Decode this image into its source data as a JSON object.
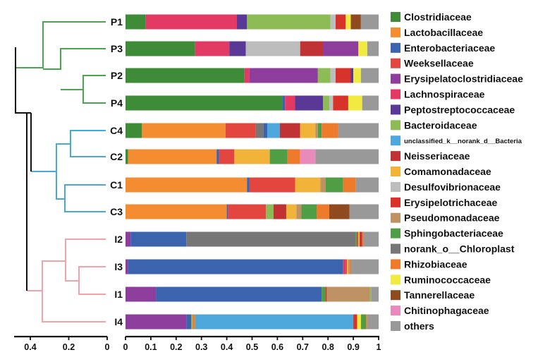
{
  "chart_data": {
    "type": "stacked-horizontal-bar-with-dendrogram",
    "samples": [
      "P1",
      "P3",
      "P2",
      "P4",
      "C4",
      "C2",
      "C1",
      "C3",
      "I2",
      "I3",
      "I1",
      "I4"
    ],
    "bar_axis": {
      "range": [
        0,
        1
      ],
      "ticks": [
        "0",
        "0.1",
        "0.2",
        "0.3",
        "0.4",
        "0.5",
        "0.6",
        "0.7",
        "0.8",
        "0.9",
        "1"
      ]
    },
    "tree_axis": {
      "range": [
        0.5,
        0
      ],
      "ticks": [
        "0.4",
        "0.2",
        "0"
      ]
    },
    "categories": [
      {
        "name": "Clostridiaceae",
        "color": "#3e8b38"
      },
      {
        "name": "Lactobacillaceae",
        "color": "#f48c32"
      },
      {
        "name": "Enterobacteriaceae",
        "color": "#3c63ad"
      },
      {
        "name": "Weeksellaceae",
        "color": "#e2463f"
      },
      {
        "name": "Erysipelatoclostridiaceae",
        "color": "#8d3d9b"
      },
      {
        "name": "Lachnospiraceae",
        "color": "#e23a64"
      },
      {
        "name": "Peptostreptococcaceae",
        "color": "#5a3895"
      },
      {
        "name": "Bacteroidaceae",
        "color": "#8dbb55"
      },
      {
        "name": "unclassified_k__norank_d__Bacteria",
        "color": "#4ea8dc"
      },
      {
        "name": "Neisseriaceae",
        "color": "#c13234"
      },
      {
        "name": "Comamonadaceae",
        "color": "#f2b33a"
      },
      {
        "name": "Desulfovibrionaceae",
        "color": "#bdbdbd"
      },
      {
        "name": "Erysipelotrichaceae",
        "color": "#d8332b"
      },
      {
        "name": "Pseudomonadaceae",
        "color": "#bf9264"
      },
      {
        "name": "Sphingobacteriaceae",
        "color": "#4f9d44"
      },
      {
        "name": "norank_o__Chloroplast",
        "color": "#767676"
      },
      {
        "name": "Rhizobiaceae",
        "color": "#ee7b2c"
      },
      {
        "name": "Ruminococcaceae",
        "color": "#f1ea40"
      },
      {
        "name": "Tannerellaceae",
        "color": "#8f4b1f"
      },
      {
        "name": "Chitinophagaceae",
        "color": "#ea8abb"
      },
      {
        "name": "others",
        "color": "#999999"
      }
    ],
    "series_values": {
      "P1": [
        [
          "Clostridiaceae",
          0.08
        ],
        [
          "Lachnospiraceae",
          0.36
        ],
        [
          "Peptostreptococcaceae",
          0.04
        ],
        [
          "Bacteroidaceae",
          0.33
        ],
        [
          "Desulfovibrionaceae",
          0.02
        ],
        [
          "Erysipelotrichaceae",
          0.04
        ],
        [
          "Ruminococcaceae",
          0.02
        ],
        [
          "Tannerellaceae",
          0.04
        ],
        [
          "others",
          0.07
        ]
      ],
      "P3": [
        [
          "Clostridiaceae",
          0.275
        ],
        [
          "Lachnospiraceae",
          0.135
        ],
        [
          "Peptostreptococcaceae",
          0.065
        ],
        [
          "Desulfovibrionaceae",
          0.215
        ],
        [
          "Neisseriaceae",
          0.09
        ],
        [
          "Erysipelatoclostridiaceae",
          0.14
        ],
        [
          "Ruminococcaceae",
          0.035
        ],
        [
          "others",
          0.045
        ]
      ],
      "P2": [
        [
          "Clostridiaceae",
          0.47
        ],
        [
          "Lachnospiraceae",
          0.02
        ],
        [
          "Erysipelatoclostridiaceae",
          0.27
        ],
        [
          "Bacteroidaceae",
          0.05
        ],
        [
          "Desulfovibrionaceae",
          0.02
        ],
        [
          "Erysipelotrichaceae",
          0.06
        ],
        [
          "Peptostreptococcaceae",
          0.01
        ],
        [
          "Ruminococcaceae",
          0.03
        ],
        [
          "others",
          0.07
        ]
      ],
      "P4": [
        [
          "Clostridiaceae",
          0.62
        ],
        [
          "Enterobacteriaceae",
          0.01
        ],
        [
          "Lachnospiraceae",
          0.04
        ],
        [
          "Peptostreptococcaceae",
          0.11
        ],
        [
          "Bacteroidaceae",
          0.025
        ],
        [
          "Desulfovibrionaceae",
          0.015
        ],
        [
          "Erysipelotrichaceae",
          0.06
        ],
        [
          "Ruminococcaceae",
          0.055
        ],
        [
          "others",
          0.065
        ]
      ],
      "C4": [
        [
          "Clostridiaceae",
          0.065
        ],
        [
          "Lactobacillaceae",
          0.33
        ],
        [
          "Weeksellaceae",
          0.12
        ],
        [
          "norank_o__Chloroplast",
          0.03
        ],
        [
          "Enterobacteriaceae",
          0.015
        ],
        [
          "unclassified_k__norank_d__Bacteria",
          0.05
        ],
        [
          "Neisseriaceae",
          0.08
        ],
        [
          "Comamonadaceae",
          0.06
        ],
        [
          "Pseudomonadaceae",
          0.01
        ],
        [
          "Sphingobacteriaceae",
          0.015
        ],
        [
          "Rhizobiaceae",
          0.065
        ],
        [
          "others",
          0.16
        ]
      ],
      "C2": [
        [
          "Clostridiaceae",
          0.01
        ],
        [
          "Lactobacillaceae",
          0.35
        ],
        [
          "Enterobacteriaceae",
          0.01
        ],
        [
          "Weeksellaceae",
          0.06
        ],
        [
          "Comamonadaceae",
          0.14
        ],
        [
          "Sphingobacteriaceae",
          0.07
        ],
        [
          "Rhizobiaceae",
          0.05
        ],
        [
          "Chitinophagaceae",
          0.06
        ],
        [
          "others",
          0.25
        ]
      ],
      "C1": [
        [
          "Lactobacillaceae",
          0.48
        ],
        [
          "Enterobacteriaceae",
          0.01
        ],
        [
          "Weeksellaceae",
          0.18
        ],
        [
          "Comamonadaceae",
          0.1
        ],
        [
          "Pseudomonadaceae",
          0.02
        ],
        [
          "Sphingobacteriaceae",
          0.07
        ],
        [
          "Rhizobiaceae",
          0.05
        ],
        [
          "others",
          0.09
        ]
      ],
      "C3": [
        [
          "Lactobacillaceae",
          0.4
        ],
        [
          "Enterobacteriaceae",
          0.005
        ],
        [
          "Weeksellaceae",
          0.15
        ],
        [
          "Bacteroidaceae",
          0.03
        ],
        [
          "Neisseriaceae",
          0.05
        ],
        [
          "Comamonadaceae",
          0.04
        ],
        [
          "Pseudomonadaceae",
          0.02
        ],
        [
          "Sphingobacteriaceae",
          0.06
        ],
        [
          "Rhizobiaceae",
          0.05
        ],
        [
          "Tannerellaceae",
          0.08
        ],
        [
          "others",
          0.115
        ]
      ],
      "I2": [
        [
          "Erysipelatoclostridiaceae",
          0.02
        ],
        [
          "Enterobacteriaceae",
          0.22
        ],
        [
          "norank_o__Chloroplast",
          0.67
        ],
        [
          "Sphingobacteriaceae",
          0.005
        ],
        [
          "Weeksellaceae",
          0.005
        ],
        [
          "Comamonadaceae",
          0.005
        ],
        [
          "Neisseriaceae",
          0.01
        ],
        [
          "Rhizobiaceae",
          0.005
        ],
        [
          "others",
          0.06
        ]
      ],
      "I3": [
        [
          "Erysipelatoclostridiaceae",
          0.01
        ],
        [
          "Enterobacteriaceae",
          0.85
        ],
        [
          "Lachnospiraceae",
          0.01
        ],
        [
          "Weeksellaceae",
          0.005
        ],
        [
          "Comamonadaceae",
          0.005
        ],
        [
          "Pseudomonadaceae",
          0.005
        ],
        [
          "Rhizobiaceae",
          0.005
        ],
        [
          "others",
          0.11
        ]
      ],
      "I1": [
        [
          "Erysipelatoclostridiaceae",
          0.12
        ],
        [
          "Enterobacteriaceae",
          0.655
        ],
        [
          "Sphingobacteriaceae",
          0.015
        ],
        [
          "Erysipelotrichaceae",
          0.005
        ],
        [
          "Pseudomonadaceae",
          0.17
        ],
        [
          "Bacteroidaceae",
          0.005
        ],
        [
          "others",
          0.03
        ]
      ],
      "I4": [
        [
          "Erysipelatoclostridiaceae",
          0.24
        ],
        [
          "Enterobacteriaceae",
          0.02
        ],
        [
          "Bacteroidaceae",
          0.005
        ],
        [
          "Rhizobiaceae",
          0.01
        ],
        [
          "unclassified_k__norank_d__Bacteria",
          0.625
        ],
        [
          "Erysipelotrichaceae",
          0.015
        ],
        [
          "Ruminococcaceae",
          0.015
        ],
        [
          "Sphingobacteriaceae",
          0.02
        ],
        [
          "Rhizobiaceae",
          0.005
        ],
        [
          "others",
          0.045
        ]
      ]
    },
    "dendrogram": {
      "groups": [
        {
          "name": "P",
          "color": "#4aa64e"
        },
        {
          "name": "C",
          "color": "#4aa8d8"
        },
        {
          "name": "I",
          "color": "#f0a3a8"
        }
      ],
      "root_color": "#111111"
    }
  }
}
